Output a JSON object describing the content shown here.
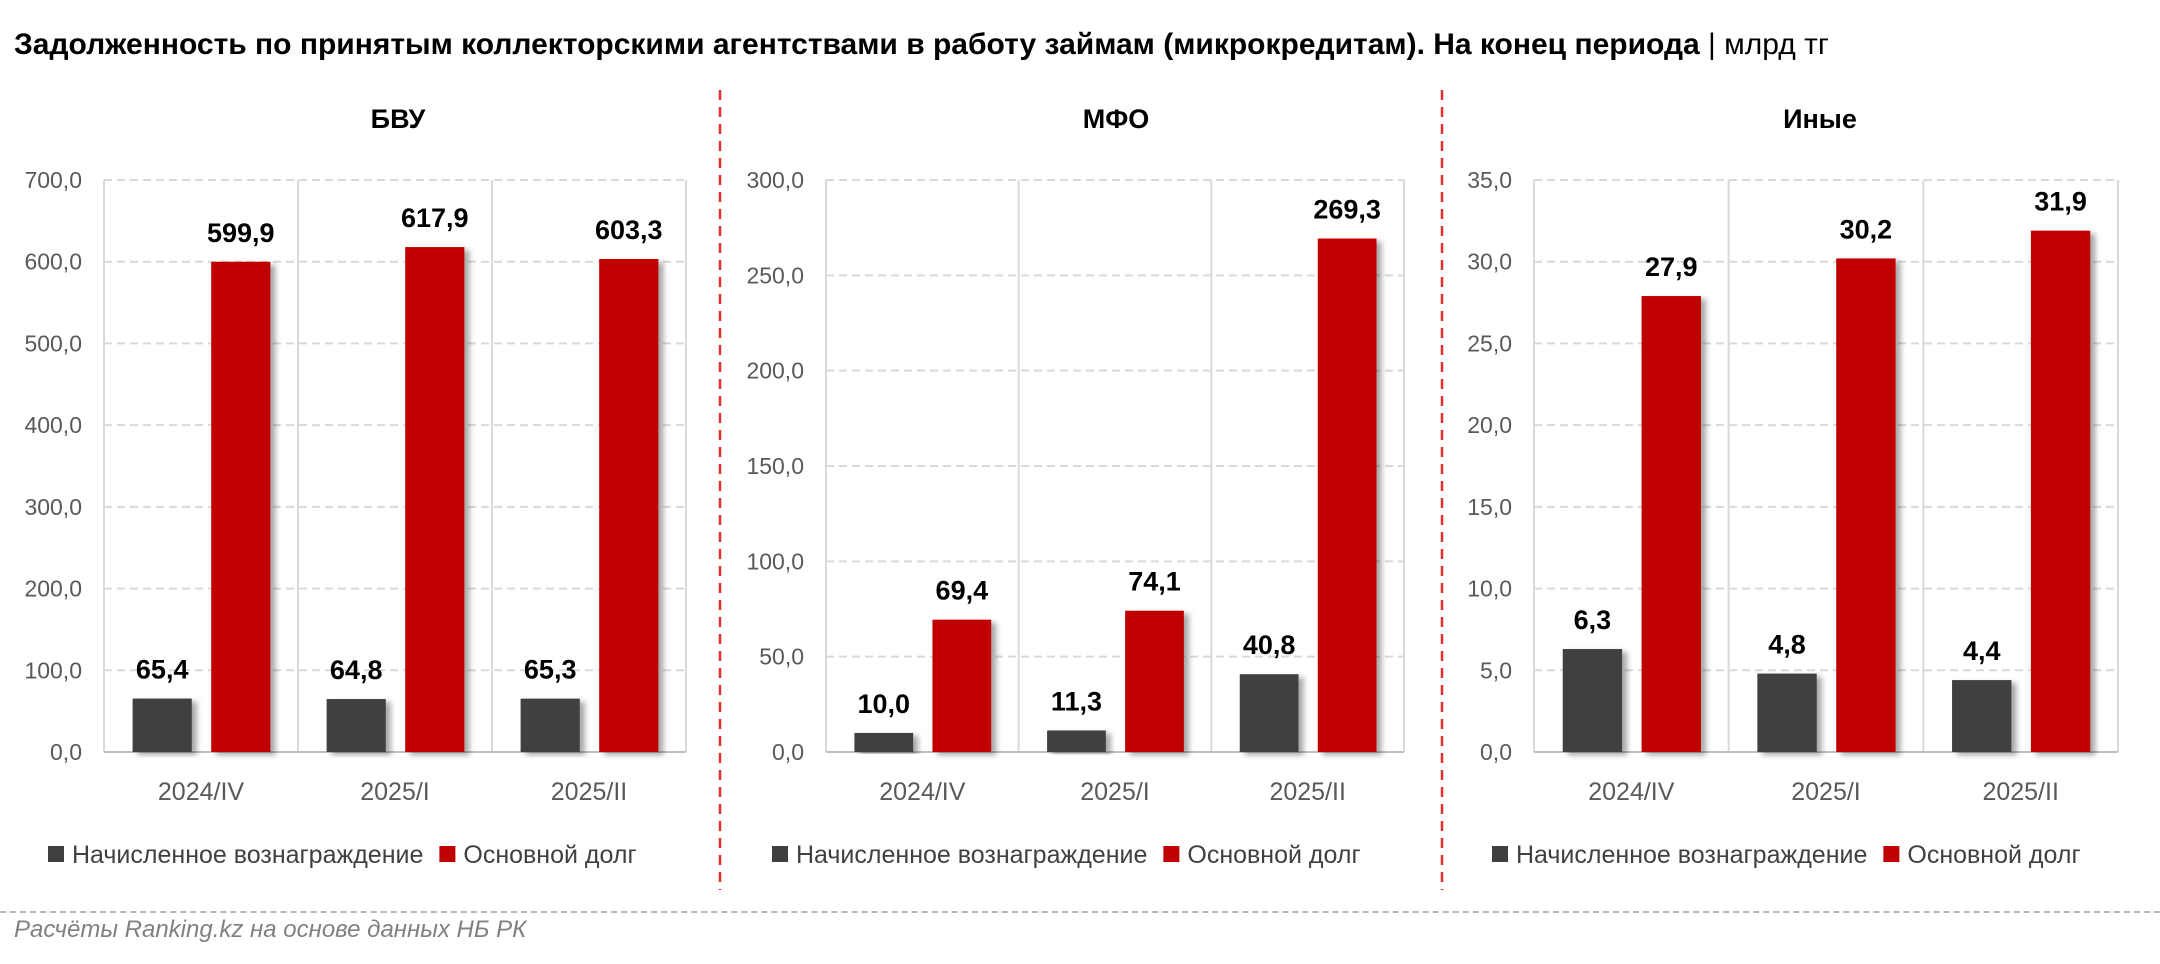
{
  "title": {
    "bold": "Задолженность по принятым коллекторскими агентствами в работу займам (микрокредитам). На конец периода",
    "separator": "|",
    "unit": "млрд тг"
  },
  "source": "Расчёты Ranking.kz на основе данных НБ РК",
  "colors": {
    "accrued": "#404040",
    "principal": "#c00000",
    "divider": "#e03030",
    "grid": "#d9d9d9"
  },
  "chart_data": [
    {
      "type": "bar",
      "title": "БВУ",
      "categories": [
        "2024/IV",
        "2025/I",
        "2025/II"
      ],
      "series": [
        {
          "name": "Начисленное вознаграждение",
          "values": [
            65.4,
            64.8,
            65.3
          ],
          "labels": [
            "65,4",
            "64,8",
            "65,3"
          ]
        },
        {
          "name": "Основной долг",
          "values": [
            599.9,
            617.9,
            603.3
          ],
          "labels": [
            "599,9",
            "617,9",
            "603,3"
          ]
        }
      ],
      "ylim": [
        0,
        700
      ],
      "yticks": [
        "0,0",
        "100,0",
        "200,0",
        "300,0",
        "400,0",
        "500,0",
        "600,0",
        "700,0"
      ],
      "grid": true,
      "legend": "bottom"
    },
    {
      "type": "bar",
      "title": "МФО",
      "categories": [
        "2024/IV",
        "2025/I",
        "2025/II"
      ],
      "series": [
        {
          "name": "Начисленное вознаграждение",
          "values": [
            10.0,
            11.3,
            40.8
          ],
          "labels": [
            "10,0",
            "11,3",
            "40,8"
          ]
        },
        {
          "name": "Основной долг",
          "values": [
            69.4,
            74.1,
            269.3
          ],
          "labels": [
            "69,4",
            "74,1",
            "269,3"
          ]
        }
      ],
      "ylim": [
        0,
        300
      ],
      "yticks": [
        "0,0",
        "50,0",
        "100,0",
        "150,0",
        "200,0",
        "250,0",
        "300,0"
      ],
      "grid": true,
      "legend": "bottom"
    },
    {
      "type": "bar",
      "title": "Иные",
      "categories": [
        "2024/IV",
        "2025/I",
        "2025/II"
      ],
      "series": [
        {
          "name": "Начисленное вознаграждение",
          "values": [
            6.3,
            4.8,
            4.4
          ],
          "labels": [
            "6,3",
            "4,8",
            "4,4"
          ]
        },
        {
          "name": "Основной долг",
          "values": [
            27.9,
            30.2,
            31.9
          ],
          "labels": [
            "27,9",
            "30,2",
            "31,9"
          ]
        }
      ],
      "ylim": [
        0,
        35
      ],
      "yticks": [
        "0,0",
        "5,0",
        "10,0",
        "15,0",
        "20,0",
        "25,0",
        "30,0",
        "35,0"
      ],
      "grid": true,
      "legend": "bottom"
    }
  ]
}
